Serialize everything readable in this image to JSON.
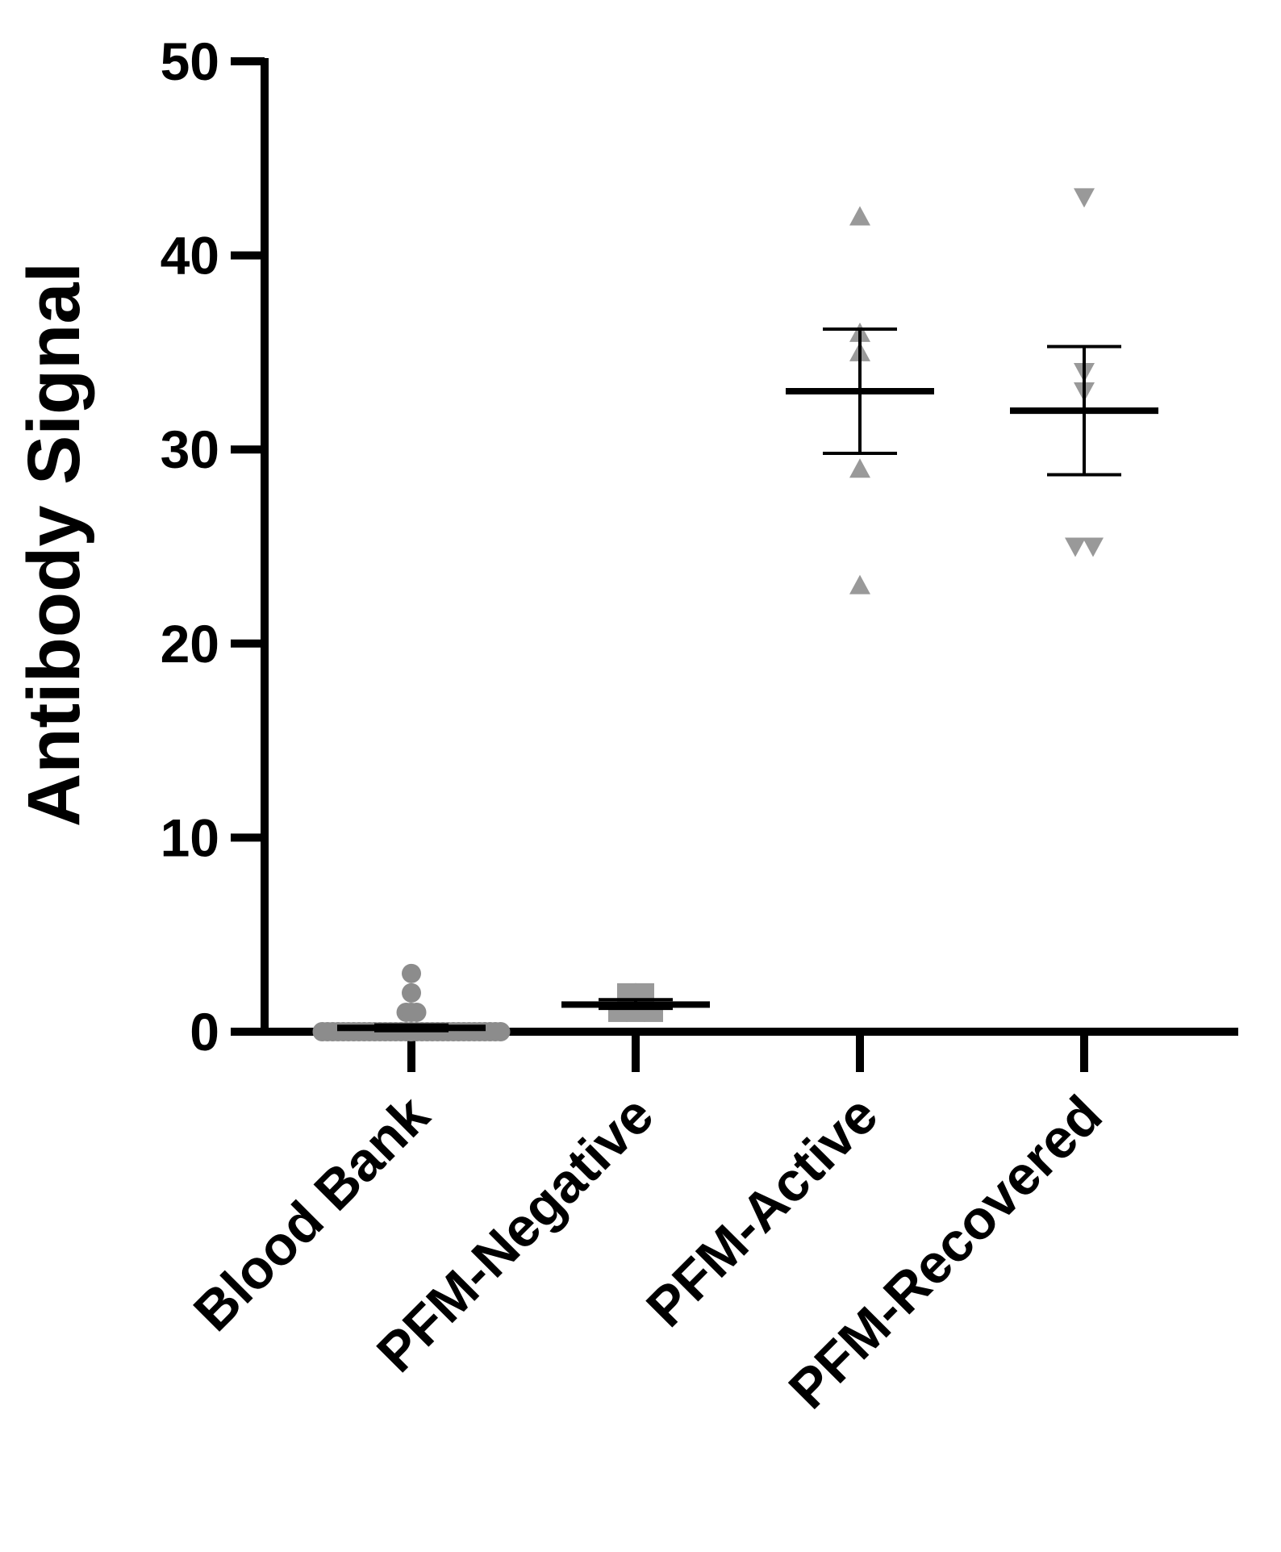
{
  "chart_data": {
    "type": "scatter",
    "ylabel": "Antibody Signal",
    "ylim": [
      0,
      50
    ],
    "yticks": [
      0,
      10,
      20,
      30,
      40,
      50
    ],
    "categories": [
      "Blood Bank",
      "PFM-Negative",
      "PFM-Active",
      "PFM-Recovered"
    ],
    "grid": false,
    "legend": "none",
    "series": [
      {
        "category": "Blood Bank",
        "marker": "circle",
        "color": "#8c8c8c",
        "points": [
          3,
          2,
          1,
          1,
          1,
          0,
          0,
          0,
          0,
          0,
          0,
          0,
          0,
          0,
          0,
          0,
          0,
          0,
          0,
          0,
          0,
          0,
          0,
          0,
          0,
          0,
          0,
          0,
          0,
          0,
          0,
          0,
          0,
          0,
          0,
          0,
          0,
          0,
          0,
          0
        ],
        "mean": 0.2,
        "sem_low": 0.05,
        "sem_high": 0.35
      },
      {
        "category": "PFM-Negative",
        "marker": "square",
        "color": "#999999",
        "points": [
          2,
          2,
          1,
          1,
          1
        ],
        "mean": 1.4,
        "sem_low": 1.2,
        "sem_high": 1.65
      },
      {
        "category": "PFM-Active",
        "marker": "triangle-up",
        "color": "#999999",
        "points": [
          42,
          36,
          35,
          29,
          23
        ],
        "mean": 33,
        "sem_low": 29.8,
        "sem_high": 36.2
      },
      {
        "category": "PFM-Recovered",
        "marker": "triangle-down",
        "color": "#999999",
        "points": [
          43,
          34,
          33,
          25,
          25
        ],
        "mean": 32,
        "sem_low": 28.7,
        "sem_high": 35.3
      }
    ]
  }
}
